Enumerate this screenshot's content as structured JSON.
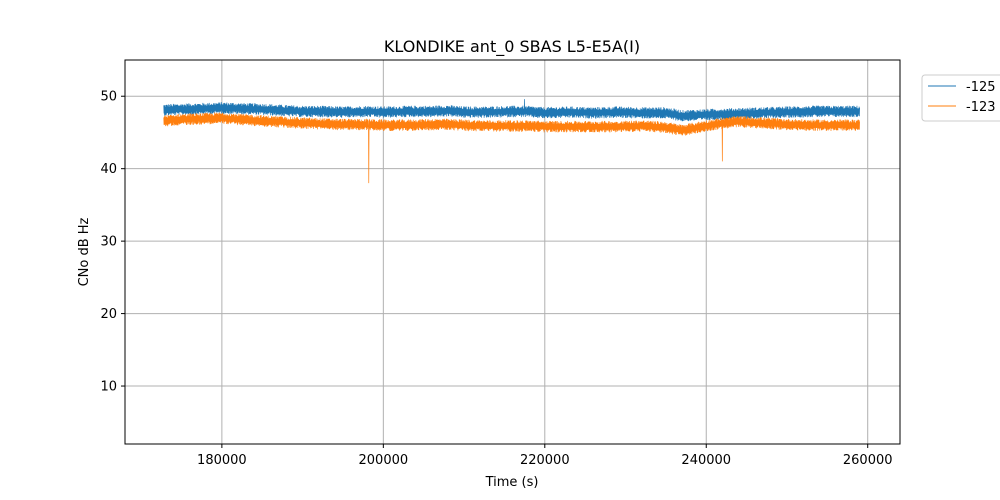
{
  "chart_data": {
    "type": "line",
    "title": "KLONDIKE ant_0 SBAS L5-E5A(I)",
    "xlabel": "Time (s)",
    "ylabel": "CNo dB Hz",
    "xlim": [
      168000,
      264000
    ],
    "ylim": [
      2,
      55
    ],
    "xticks": [
      180000,
      200000,
      220000,
      240000,
      260000
    ],
    "xtick_labels": [
      "180000",
      "200000",
      "220000",
      "240000",
      "260000"
    ],
    "yticks": [
      10,
      20,
      30,
      40,
      50
    ],
    "ytick_labels": [
      "10",
      "20",
      "30",
      "40",
      "50"
    ],
    "grid": true,
    "legend_position": "outside top-right",
    "series": [
      {
        "name": "-125",
        "color": "#1f77b4",
        "x": [
          172800,
          175000,
          178000,
          180000,
          182000,
          185000,
          188000,
          190000,
          192000,
          195000,
          198000,
          200000,
          203000,
          206000,
          208000,
          210000,
          213000,
          216000,
          217500,
          220000,
          223000,
          226000,
          229000,
          232000,
          235000,
          237000,
          239000,
          241000,
          244000,
          247000,
          250000,
          253000,
          256000,
          259000
        ],
        "values": [
          48.1,
          48.2,
          48.3,
          48.4,
          48.3,
          48.2,
          48.0,
          47.9,
          47.9,
          47.8,
          47.9,
          47.8,
          47.9,
          47.9,
          48.0,
          47.8,
          47.8,
          47.9,
          47.9,
          47.7,
          47.8,
          47.7,
          47.8,
          47.7,
          47.7,
          47.3,
          47.4,
          47.5,
          47.6,
          47.7,
          47.8,
          47.9,
          47.9,
          47.9
        ],
        "spikes": [
          {
            "x": 217500,
            "y": 49.6
          }
        ]
      },
      {
        "name": "-123",
        "color": "#ff7f0e",
        "x": [
          172800,
          175000,
          178000,
          180000,
          182000,
          185000,
          188000,
          190000,
          192000,
          195000,
          198000,
          200000,
          203000,
          206000,
          208000,
          210000,
          213000,
          216000,
          218000,
          220000,
          223000,
          226000,
          229000,
          232000,
          235000,
          237000,
          239000,
          241000,
          244000,
          247000,
          250000,
          253000,
          256000,
          259000
        ],
        "values": [
          46.6,
          46.8,
          46.9,
          47.0,
          46.8,
          46.6,
          46.4,
          46.3,
          46.2,
          46.1,
          46.1,
          46.0,
          46.0,
          46.1,
          46.1,
          46.0,
          45.9,
          45.9,
          45.9,
          45.8,
          45.8,
          45.8,
          45.8,
          45.9,
          45.7,
          45.3,
          45.7,
          46.1,
          46.5,
          46.3,
          46.1,
          46.0,
          46.0,
          46.0
        ],
        "spikes": [
          {
            "x": 198200,
            "y": 38.0
          },
          {
            "x": 242000,
            "y": 41.0
          }
        ]
      }
    ]
  }
}
